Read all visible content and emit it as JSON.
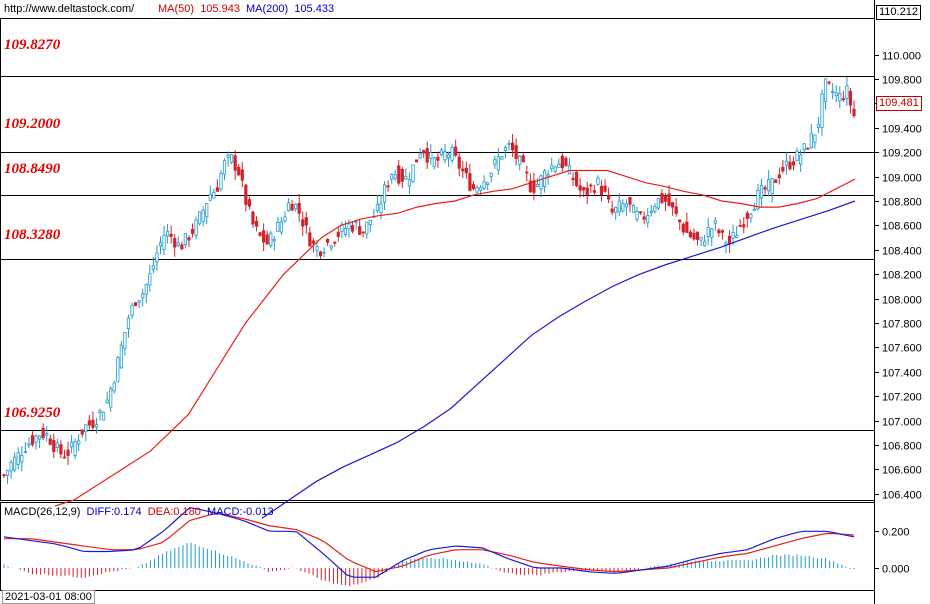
{
  "header": {
    "url": "http://www.deltastock.com/",
    "ma50_label": "MA(50)",
    "ma50_value": "105.943",
    "ma200_label": "MA(200)",
    "ma200_value": "105.433"
  },
  "macd_header": {
    "label": "MACD(26,12,9)",
    "diff": "DIFF:0.174",
    "dea": "DEA:0.180",
    "macd": "MACD:-0.013"
  },
  "price_tags": {
    "top": "110.212",
    "last": "109.481"
  },
  "time_label": "2021-03-01 08:00",
  "levels": [
    "109.8270",
    "109.2000",
    "108.8490",
    "108.3280",
    "106.9250"
  ],
  "colors": {
    "up": "#1f9bcf",
    "down": "#d2232a",
    "ma50": "#e8201a",
    "ma200": "#1a1ad4",
    "level_text": "#e00000"
  },
  "chart_data": [
    {
      "type": "candlestick",
      "ylim": [
        106.35,
        110.3
      ],
      "y_ticks": [
        "110.000",
        "109.800",
        "109.600",
        "109.400",
        "109.200",
        "109.000",
        "108.800",
        "108.600",
        "108.400",
        "108.200",
        "108.000",
        "107.800",
        "107.600",
        "107.400",
        "107.200",
        "107.000",
        "106.800",
        "106.600",
        "106.400"
      ],
      "horizontal_levels": [
        109.827,
        109.2,
        108.849,
        108.328,
        106.925
      ],
      "close_series_approx": [
        106.55,
        106.65,
        106.72,
        106.8,
        106.85,
        106.9,
        106.88,
        106.78,
        106.72,
        106.75,
        106.85,
        106.95,
        106.98,
        107.05,
        107.15,
        107.35,
        107.6,
        107.85,
        108.0,
        108.05,
        108.2,
        108.4,
        108.55,
        108.5,
        108.42,
        108.5,
        108.58,
        108.7,
        108.85,
        108.9,
        109.1,
        109.15,
        109.05,
        108.8,
        108.6,
        108.5,
        108.45,
        108.55,
        108.65,
        108.8,
        108.75,
        108.6,
        108.45,
        108.4,
        108.45,
        108.5,
        108.55,
        108.6,
        108.6,
        108.55,
        108.65,
        108.72,
        108.9,
        109.05,
        109.0,
        108.98,
        109.1,
        109.25,
        109.15,
        109.12,
        109.18,
        109.2,
        109.1,
        109.0,
        108.9,
        108.95,
        109.0,
        109.1,
        109.2,
        109.25,
        109.15,
        109.05,
        108.9,
        108.95,
        109.05,
        109.1,
        109.12,
        109.05,
        108.95,
        108.85,
        108.9,
        108.95,
        108.85,
        108.7,
        108.75,
        108.78,
        108.7,
        108.65,
        108.72,
        108.8,
        108.82,
        108.75,
        108.65,
        108.55,
        108.5,
        108.45,
        108.55,
        108.6,
        108.5,
        108.45,
        108.55,
        108.65,
        108.75,
        108.85,
        108.9,
        108.95,
        109.05,
        109.1,
        109.15,
        109.2,
        109.3,
        109.4,
        109.75,
        109.7,
        109.65,
        109.7,
        109.5
      ],
      "ma50_approx": [
        106.3,
        106.35,
        106.45,
        106.55,
        106.65,
        106.75,
        106.9,
        107.05,
        107.3,
        107.55,
        107.8,
        108.0,
        108.2,
        108.35,
        108.5,
        108.6,
        108.65,
        108.68,
        108.7,
        108.75,
        108.78,
        108.8,
        108.85,
        108.88,
        108.9,
        108.95,
        109.0,
        109.05,
        109.05,
        109.05,
        109.0,
        108.95,
        108.92,
        108.88,
        108.85,
        108.8,
        108.78,
        108.75,
        108.75,
        108.78,
        108.82,
        108.9,
        108.98
      ],
      "ma200_approx": [
        106.2,
        106.35,
        106.5,
        106.62,
        106.72,
        106.82,
        106.95,
        107.1,
        107.3,
        107.5,
        107.7,
        107.85,
        107.98,
        108.1,
        108.2,
        108.28,
        108.35,
        108.42,
        108.5,
        108.58,
        108.65,
        108.72,
        108.8
      ]
    },
    {
      "type": "bar+line",
      "name": "MACD(26,12,9)",
      "ylim": [
        -0.12,
        0.36
      ],
      "y_ticks": [
        "0.200",
        "0.000"
      ],
      "diff_approx": [
        0.17,
        0.15,
        0.13,
        0.09,
        0.09,
        0.1,
        0.2,
        0.33,
        0.3,
        0.26,
        0.2,
        0.2,
        0.08,
        -0.05,
        -0.05,
        0.04,
        0.1,
        0.12,
        0.11,
        0.05,
        0.0,
        0.0,
        -0.02,
        -0.03,
        -0.01,
        0.01,
        0.05,
        0.08,
        0.1,
        0.16,
        0.2,
        0.2,
        0.17
      ],
      "dea_approx": [
        0.16,
        0.16,
        0.14,
        0.12,
        0.1,
        0.1,
        0.14,
        0.26,
        0.3,
        0.27,
        0.23,
        0.21,
        0.15,
        0.04,
        -0.02,
        0.01,
        0.07,
        0.1,
        0.1,
        0.07,
        0.03,
        0.01,
        -0.01,
        -0.02,
        -0.01,
        0.0,
        0.03,
        0.06,
        0.08,
        0.12,
        0.16,
        0.19,
        0.18
      ],
      "hist_approx": [
        0.02,
        -0.03,
        -0.04,
        -0.05,
        -0.02,
        0.0,
        0.08,
        0.14,
        0.09,
        0.04,
        -0.02,
        0.0,
        -0.07,
        -0.1,
        -0.06,
        0.04,
        0.06,
        0.04,
        0.02,
        -0.03,
        -0.04,
        -0.02,
        -0.01,
        -0.02,
        0.0,
        0.02,
        0.04,
        0.04,
        0.04,
        0.07,
        0.07,
        0.05,
        -0.01
      ]
    }
  ]
}
